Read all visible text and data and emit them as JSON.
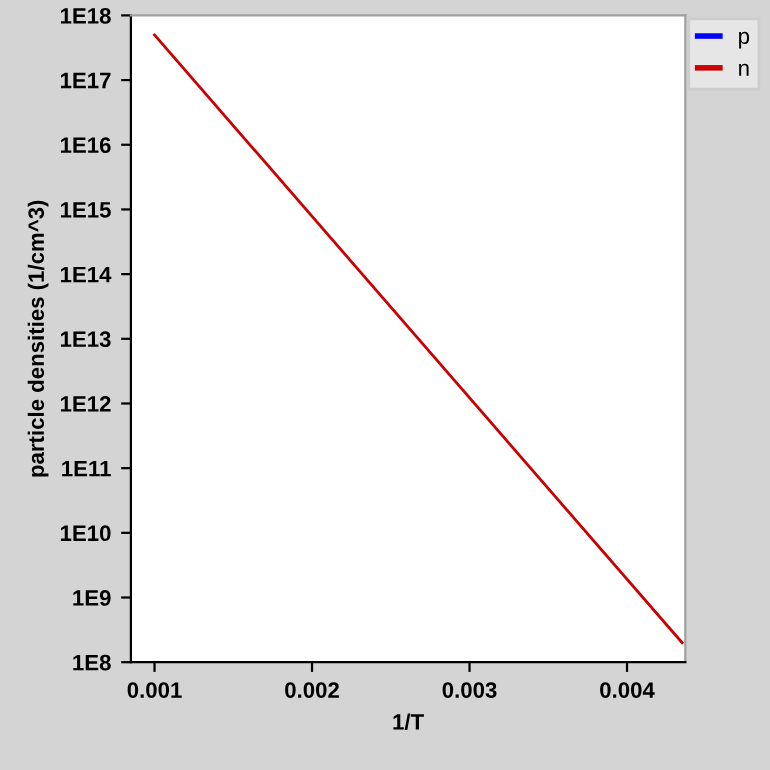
{
  "chart_data": {
    "type": "line",
    "xlabel": "1/T",
    "ylabel": "particle densities (1/cm^3)",
    "log": "y",
    "x": [
      0.001,
      0.00435
    ],
    "series": [
      {
        "name": "p",
        "color": "#0000ff",
        "values": [
          null,
          null
        ]
      },
      {
        "name": "n",
        "color": "#cc0000",
        "values": [
          5e+17,
          200000000.0
        ]
      }
    ],
    "xlim": [
      0.00085,
      0.00437
    ],
    "xticks": [
      0.001,
      0.002,
      0.003,
      0.004
    ],
    "ylim": [
      100000000.0,
      1e+18
    ],
    "yticks": [
      {
        "value": 100000000.0,
        "label": "1E8"
      },
      {
        "value": 1000000000.0,
        "label": "1E9"
      },
      {
        "value": 10000000000.0,
        "label": "1E10"
      },
      {
        "value": 100000000000.0,
        "label": "1E11"
      },
      {
        "value": 1000000000000.0,
        "label": "1E12"
      },
      {
        "value": 10000000000000.0,
        "label": "1E13"
      },
      {
        "value": 100000000000000.0,
        "label": "1E14"
      },
      {
        "value": 1000000000000000.0,
        "label": "1E15"
      },
      {
        "value": 1e+16,
        "label": "1E16"
      },
      {
        "value": 1e+17,
        "label": "1E17"
      },
      {
        "value": 1e+18,
        "label": "1E18"
      }
    ],
    "legend": "top right",
    "grid": false
  }
}
